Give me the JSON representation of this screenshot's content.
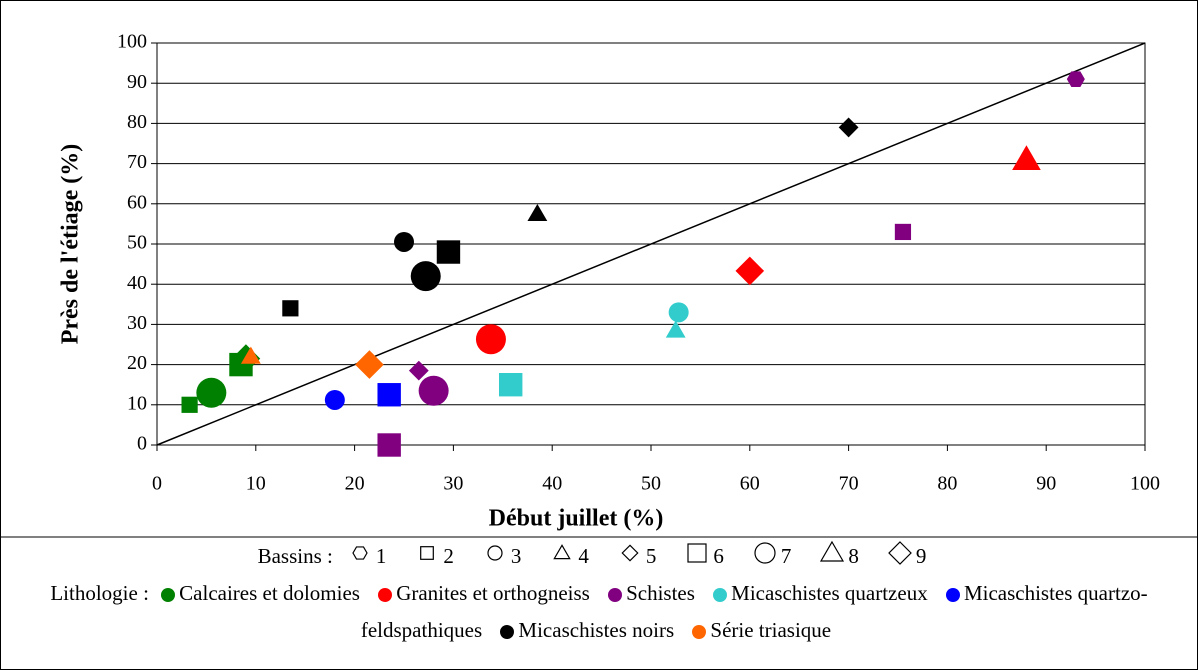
{
  "chart_data": {
    "type": "scatter",
    "xlabel": "Début juillet (%)",
    "ylabel": "Près de l'étiage (%)",
    "xlim": [
      0,
      100
    ],
    "ylim": [
      0,
      100
    ],
    "xticks": [
      0,
      10,
      20,
      30,
      40,
      50,
      60,
      70,
      80,
      90,
      100
    ],
    "yticks": [
      0,
      10,
      20,
      30,
      40,
      50,
      60,
      70,
      80,
      90,
      100
    ],
    "grid": true,
    "identity_line": true,
    "basins_title": "Bassins :",
    "basins": [
      {
        "label": "1",
        "shape": "hexagon",
        "size": "small"
      },
      {
        "label": "2",
        "shape": "square",
        "size": "small"
      },
      {
        "label": "3",
        "shape": "circle",
        "size": "small"
      },
      {
        "label": "4",
        "shape": "triangle",
        "size": "small"
      },
      {
        "label": "5",
        "shape": "diamond",
        "size": "small"
      },
      {
        "label": "6",
        "shape": "square",
        "size": "large"
      },
      {
        "label": "7",
        "shape": "circle",
        "size": "large"
      },
      {
        "label": "8",
        "shape": "triangle",
        "size": "large"
      },
      {
        "label": "9",
        "shape": "diamond",
        "size": "large"
      }
    ],
    "legend_title": "Lithologie :",
    "series": [
      {
        "name": "Calcaires et dolomies",
        "color": "#008000",
        "x": [
          3.3,
          5.5,
          8.5,
          9
        ],
        "values": [
          10,
          13,
          20,
          21.5
        ],
        "basin": [
          "2",
          "7",
          "6",
          "9"
        ]
      },
      {
        "name": "Granites et orthogneiss",
        "color": "#ff0000",
        "x": [
          33.8,
          60,
          88
        ],
        "values": [
          26.3,
          43.3,
          71
        ],
        "basin": [
          "7",
          "9",
          "8"
        ]
      },
      {
        "name": "Schistes",
        "color": "#800080",
        "x": [
          23.5,
          26.5,
          28,
          75.5,
          93
        ],
        "values": [
          0,
          18.5,
          13.5,
          53,
          91
        ],
        "basin": [
          "6",
          "5",
          "7",
          "2",
          "1"
        ]
      },
      {
        "name": "Micaschistes quartzeux",
        "color": "#33cccc",
        "x": [
          35.8,
          52.8,
          52.5
        ],
        "values": [
          15,
          33,
          28.5
        ],
        "basin": [
          "6",
          "3",
          "4"
        ]
      },
      {
        "name": "Micaschistes quartzo-feldspathiques",
        "color": "#0000ff",
        "x": [
          18,
          23.5
        ],
        "values": [
          11.2,
          12.5
        ],
        "basin": [
          "3",
          "6"
        ]
      },
      {
        "name": "Micaschistes noirs",
        "color": "#000000",
        "x": [
          13.5,
          25,
          27.2,
          29.5,
          38.5,
          70
        ],
        "values": [
          34,
          50.5,
          42,
          48,
          57.5,
          79
        ],
        "basin": [
          "2",
          "3",
          "7",
          "6",
          "4",
          "5"
        ]
      },
      {
        "name": "Série triasique",
        "color": "#ff6600",
        "x": [
          9.5,
          21.5
        ],
        "values": [
          22,
          20
        ],
        "basin": [
          "4",
          "9"
        ]
      }
    ]
  }
}
